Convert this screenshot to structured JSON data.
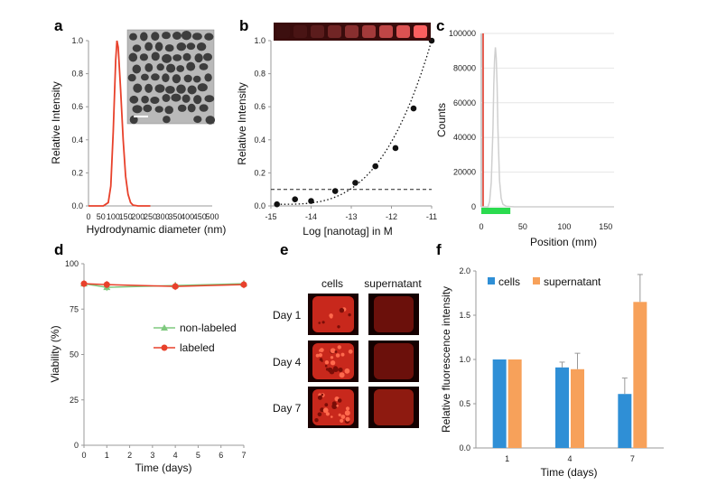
{
  "panels": {
    "a": "a",
    "b": "b",
    "c": "c",
    "d": "d",
    "e": "e",
    "f": "f"
  },
  "colors": {
    "red": "#e8412b",
    "green": "#7fc97f",
    "blue": "#2f8fd6",
    "orange": "#f7a15a",
    "gray": "#cfcfcf",
    "bright_green": "#2bdb4f"
  },
  "chart_data": [
    {
      "panel": "a",
      "type": "line",
      "xlabel": "Hydrodynamic diameter (nm)",
      "ylabel": "Relative Intensity",
      "xlim": [
        0,
        500
      ],
      "ylim": [
        0,
        1.0
      ],
      "xticks": [
        "0",
        "50",
        "100",
        "150",
        "200",
        "250",
        "300",
        "350",
        "400",
        "450",
        "500"
      ],
      "yticks": [
        "0.0",
        "0.2",
        "0.4",
        "0.6",
        "0.8",
        "1.0"
      ],
      "peak_x": 115,
      "peak_y": 1.0,
      "x": [
        0,
        60,
        80,
        90,
        100,
        110,
        115,
        120,
        130,
        140,
        150,
        160,
        170,
        180,
        200,
        250
      ],
      "y": [
        0,
        0,
        0.02,
        0.12,
        0.45,
        0.88,
        1.0,
        0.96,
        0.7,
        0.4,
        0.18,
        0.07,
        0.02,
        0.005,
        0,
        0
      ]
    },
    {
      "panel": "b",
      "type": "scatter",
      "xlabel": "Log [nanotag] in M",
      "ylabel": "Relative Intensity",
      "xlim": [
        -15,
        -11
      ],
      "ylim": [
        0,
        1.0
      ],
      "xticks": [
        "-15",
        "-14",
        "-13",
        "-12",
        "-11"
      ],
      "yticks": [
        "0.0",
        "0.2",
        "0.4",
        "0.6",
        "0.8",
        "1.0"
      ],
      "threshold": 0.1,
      "x": [
        -14.85,
        -14.4,
        -14.0,
        -13.4,
        -12.9,
        -12.4,
        -11.9,
        -11.45,
        -11.0
      ],
      "y": [
        0.01,
        0.04,
        0.03,
        0.09,
        0.14,
        0.24,
        0.35,
        0.59,
        1.0
      ],
      "strip_wells": 9
    },
    {
      "panel": "c",
      "type": "line",
      "xlabel": "Position (mm)",
      "ylabel": "Counts",
      "xlim": [
        0,
        160
      ],
      "ylim": [
        0,
        100000
      ],
      "xticks": [
        "0",
        "50",
        "100",
        "150"
      ],
      "yticks": [
        "0",
        "20000",
        "40000",
        "60000",
        "80000",
        "100000"
      ],
      "peak_x": 17,
      "peak_y": 92000,
      "x": [
        0,
        8,
        10,
        12,
        14,
        15,
        16,
        17,
        18,
        19,
        20,
        22,
        24,
        26,
        30,
        40,
        160
      ],
      "y": [
        0,
        0,
        3000,
        14000,
        45000,
        70000,
        85000,
        92000,
        86000,
        70000,
        45000,
        15000,
        5000,
        1500,
        300,
        0,
        0
      ],
      "bar_range": [
        0,
        35
      ]
    },
    {
      "panel": "d",
      "type": "line",
      "xlabel": "Time (days)",
      "ylabel": "Viability (%)",
      "xlim": [
        0,
        7
      ],
      "ylim": [
        0,
        100
      ],
      "xticks": [
        "0",
        "1",
        "2",
        "3",
        "4",
        "5",
        "6",
        "7"
      ],
      "yticks": [
        "0",
        "25",
        "50",
        "75",
        "100"
      ],
      "series": [
        {
          "name": "non-labeled",
          "x": [
            0,
            1,
            4,
            7
          ],
          "values": [
            89,
            87,
            88,
            89
          ]
        },
        {
          "name": "labeled",
          "x": [
            0,
            1,
            4,
            7
          ],
          "values": [
            89,
            88.5,
            87.5,
            88.5
          ]
        }
      ]
    },
    {
      "panel": "f",
      "type": "bar",
      "xlabel": "Time (days)",
      "ylabel": "Relative fluorescence intensity",
      "categories": [
        "1",
        "4",
        "7"
      ],
      "ylim": [
        0,
        2.0
      ],
      "yticks": [
        "0.0",
        "0.5",
        "1.0",
        "1.5",
        "2.0"
      ],
      "series": [
        {
          "name": "cells",
          "values": [
            1.0,
            0.91,
            0.61
          ],
          "errors": [
            0.0,
            0.06,
            0.18
          ]
        },
        {
          "name": "supernatant",
          "values": [
            1.0,
            0.89,
            1.65
          ],
          "errors": [
            0.0,
            0.18,
            0.31
          ]
        }
      ]
    }
  ],
  "panel_e": {
    "col_headers": [
      "cells",
      "supernatant"
    ],
    "rows": [
      {
        "day": "Day 1"
      },
      {
        "day": "Day 4"
      },
      {
        "day": "Day 7"
      }
    ]
  }
}
